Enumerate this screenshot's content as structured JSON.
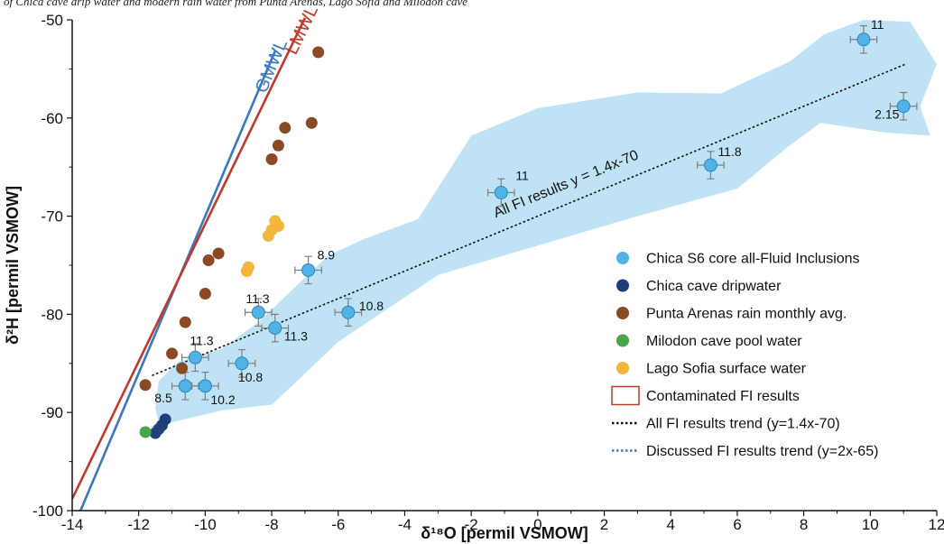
{
  "caption": "of Chica cave drip water and modern rain water from Punta Arenas, Lago Sofia and Milodon cave",
  "colors": {
    "fi": "#4fb3e6",
    "dripwater": "#1f3f7a",
    "rain": "#8b4a26",
    "pool": "#49a647",
    "lake": "#f2b73a",
    "gmwl": "#3a78bf",
    "lmwl": "#c0392b",
    "envelope": "#bfe3f4",
    "errorbar": "#7f7f7f"
  },
  "chart_data": {
    "type": "scatter",
    "xlabel": "δ¹⁸O [permil VSMOW]",
    "ylabel": "δ²H [permil VSMOW]",
    "xlim": [
      -14,
      12
    ],
    "ylim": [
      -100,
      -50
    ],
    "xticks": [
      "-14",
      "-12",
      "-10",
      "-8",
      "-6",
      "-4",
      "-2",
      "0",
      "2",
      "4",
      "6",
      "8",
      "10",
      "12"
    ],
    "yticks": [
      "-100",
      "-90",
      "-80",
      "-70",
      "-60",
      "-50"
    ],
    "grid": false,
    "legend_position": "bottom-right",
    "lines": [
      {
        "name": "GMWL",
        "slope": 8,
        "intercept": 10,
        "x_range": [
          -13.85,
          -7.9
        ]
      },
      {
        "name": "LMWL",
        "slope": 7,
        "intercept": -0.8,
        "x_range": [
          -14,
          -7.0
        ]
      }
    ],
    "trend": {
      "label": "All FI results y = 1.4x-70",
      "slope": 1.4,
      "intercept": -70,
      "x_range": [
        -11.6,
        11.1
      ]
    },
    "envelope": [
      [
        -11.4,
        -91
      ],
      [
        -11.5,
        -89.5
      ],
      [
        -11.4,
        -86.8
      ],
      [
        -10.8,
        -84.8
      ],
      [
        -9.5,
        -83.5
      ],
      [
        -8.4,
        -80.8
      ],
      [
        -6.3,
        -74
      ],
      [
        -5.2,
        -72.3
      ],
      [
        -3.6,
        -70.3
      ],
      [
        -2.0,
        -61.8
      ],
      [
        0,
        -59
      ],
      [
        3,
        -57.4
      ],
      [
        5.5,
        -57.5
      ],
      [
        7.6,
        -54.2
      ],
      [
        8.6,
        -51.5
      ],
      [
        9.8,
        -50.0
      ],
      [
        11.2,
        -50.2
      ],
      [
        12.0,
        -54.5
      ],
      [
        11.5,
        -58.8
      ],
      [
        11.8,
        -61.8
      ],
      [
        10.5,
        -61.5
      ],
      [
        8.5,
        -60.5
      ],
      [
        7.5,
        -63
      ],
      [
        6.0,
        -67.2
      ],
      [
        3.0,
        -70.0
      ],
      [
        0.0,
        -73.0
      ],
      [
        -3.0,
        -76.0
      ],
      [
        -6.0,
        -82.8
      ],
      [
        -7.3,
        -87.0
      ],
      [
        -8.0,
        -89.2
      ],
      [
        -9.5,
        -89.8
      ],
      [
        -11.0,
        -91.0
      ]
    ],
    "series": [
      {
        "name": "Chica S6 core all-Fluid Inclusions",
        "points": [
          {
            "x": 9.8,
            "y": -52,
            "xerr": 0.4,
            "yerr": 1.4,
            "label": "11"
          },
          {
            "x": 11.0,
            "y": -58.8,
            "xerr": 0.4,
            "yerr": 1.4,
            "label": "2.15"
          },
          {
            "x": 5.2,
            "y": -64.8,
            "xerr": 0.4,
            "yerr": 1.4,
            "label": "11.8"
          },
          {
            "x": -1.1,
            "y": -67.6,
            "xerr": 0.4,
            "yerr": 1.4,
            "label": "11"
          },
          {
            "x": -6.9,
            "y": -75.5,
            "xerr": 0.4,
            "yerr": 1.4,
            "label": "8.9"
          },
          {
            "x": -5.7,
            "y": -79.8,
            "xerr": 0.4,
            "yerr": 1.4,
            "label": "10.8"
          },
          {
            "x": -8.4,
            "y": -79.8,
            "xerr": 0.4,
            "yerr": 1.4,
            "label": "11.3"
          },
          {
            "x": -7.9,
            "y": -81.4,
            "xerr": 0.4,
            "yerr": 1.4,
            "label": "11.3"
          },
          {
            "x": -10.3,
            "y": -84.4,
            "xerr": 0.4,
            "yerr": 1.4,
            "label": "11.3"
          },
          {
            "x": -8.9,
            "y": -85.0,
            "xerr": 0.4,
            "yerr": 1.4,
            "label": "10.8"
          },
          {
            "x": -10.6,
            "y": -87.3,
            "xerr": 0.4,
            "yerr": 1.4,
            "label": "8.5"
          },
          {
            "x": -10.0,
            "y": -87.3,
            "xerr": 0.4,
            "yerr": 1.4,
            "label": "10.2"
          }
        ]
      },
      {
        "name": "Chica cave dripwater",
        "points": [
          {
            "x": -11.2,
            "y": -90.7
          },
          {
            "x": -11.3,
            "y": -91.3
          },
          {
            "x": -11.4,
            "y": -91.7
          },
          {
            "x": -11.5,
            "y": -92.1
          }
        ]
      },
      {
        "name": "Punta Arenas rain monthly avg.",
        "points": [
          {
            "x": -6.6,
            "y": -53.3
          },
          {
            "x": -6.8,
            "y": -60.5
          },
          {
            "x": -7.6,
            "y": -61.0
          },
          {
            "x": -7.8,
            "y": -62.8
          },
          {
            "x": -8.0,
            "y": -64.2
          },
          {
            "x": -9.6,
            "y": -73.8
          },
          {
            "x": -9.9,
            "y": -74.5
          },
          {
            "x": -10.0,
            "y": -77.9
          },
          {
            "x": -10.6,
            "y": -80.8
          },
          {
            "x": -11.0,
            "y": -84.0
          },
          {
            "x": -10.7,
            "y": -85.5
          },
          {
            "x": -11.8,
            "y": -87.2
          }
        ]
      },
      {
        "name": "Milodon cave pool water",
        "points": [
          {
            "x": -11.8,
            "y": -92.0
          }
        ]
      },
      {
        "name": "Lago Sofia surface water",
        "points": [
          {
            "x": -7.9,
            "y": -70.5
          },
          {
            "x": -7.8,
            "y": -71.0
          },
          {
            "x": -8.0,
            "y": -71.4
          },
          {
            "x": -8.1,
            "y": -72.0
          },
          {
            "x": -8.7,
            "y": -75.2
          },
          {
            "x": -8.75,
            "y": -75.6
          }
        ]
      }
    ],
    "legend": [
      {
        "label": "Chica S6 core all-Fluid Inclusions",
        "kind": "dot",
        "color": "#4fb3e6"
      },
      {
        "label": "Chica cave dripwater",
        "kind": "dot",
        "color": "#1f3f7a"
      },
      {
        "label": "Punta Arenas rain monthly avg.",
        "kind": "dot",
        "color": "#8b4a26"
      },
      {
        "label": "Milodon cave pool water",
        "kind": "dot",
        "color": "#49a647"
      },
      {
        "label": "Lago Sofia surface water",
        "kind": "dot",
        "color": "#f2b73a"
      },
      {
        "label": "Contaminated FI results",
        "kind": "rect",
        "color": "#c0392b"
      },
      {
        "label": "All FI results trend (y=1.4x-70)",
        "kind": "dots-black",
        "color": "#111111"
      },
      {
        "label": "Discussed FI results trend (y=2x-65)",
        "kind": "dots-blue",
        "color": "#3a78bf"
      }
    ]
  }
}
